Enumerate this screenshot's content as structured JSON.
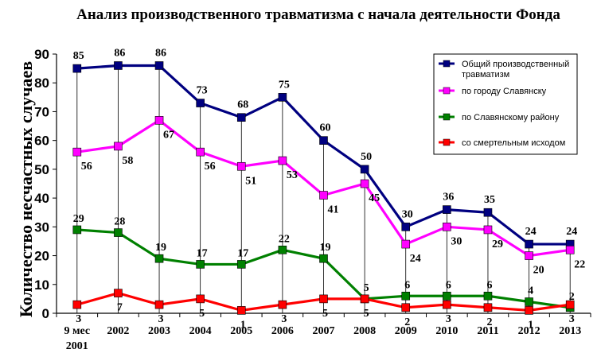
{
  "chart_data": {
    "type": "line",
    "title": "Анализ производственного травматизма с начала деятельности Фонда",
    "ylabel": "Количество несчастных случаев",
    "xlabel": "",
    "ylim": [
      0,
      90
    ],
    "yticks": [
      0,
      10,
      20,
      30,
      40,
      50,
      60,
      70,
      80,
      90
    ],
    "categories": [
      "9 мес 2001",
      "2002",
      "2003",
      "2004",
      "2005",
      "2006",
      "2007",
      "2008",
      "2009",
      "2010",
      "2011",
      "2012",
      "2013"
    ],
    "grid": "vertical drop lines",
    "legend_position": "right",
    "series": [
      {
        "name": "Общий производственный травматизм",
        "color": "#000080",
        "marker": "square",
        "values": [
          85,
          86,
          86,
          73,
          68,
          75,
          60,
          50,
          30,
          36,
          35,
          24,
          24
        ]
      },
      {
        "name": "по городу Славянску",
        "color": "#ff00ff",
        "marker": "square",
        "values": [
          56,
          58,
          67,
          56,
          51,
          53,
          41,
          45,
          24,
          30,
          29,
          20,
          22
        ]
      },
      {
        "name": "по Славянскому району",
        "color": "#008000",
        "marker": "square",
        "values": [
          29,
          28,
          19,
          17,
          17,
          22,
          19,
          5,
          6,
          6,
          6,
          4,
          2
        ]
      },
      {
        "name": "со смертельным исходом",
        "color": "#ff0000",
        "marker": "square",
        "values": [
          3,
          7,
          3,
          5,
          1,
          3,
          5,
          5,
          2,
          3,
          2,
          1,
          3
        ]
      }
    ]
  }
}
